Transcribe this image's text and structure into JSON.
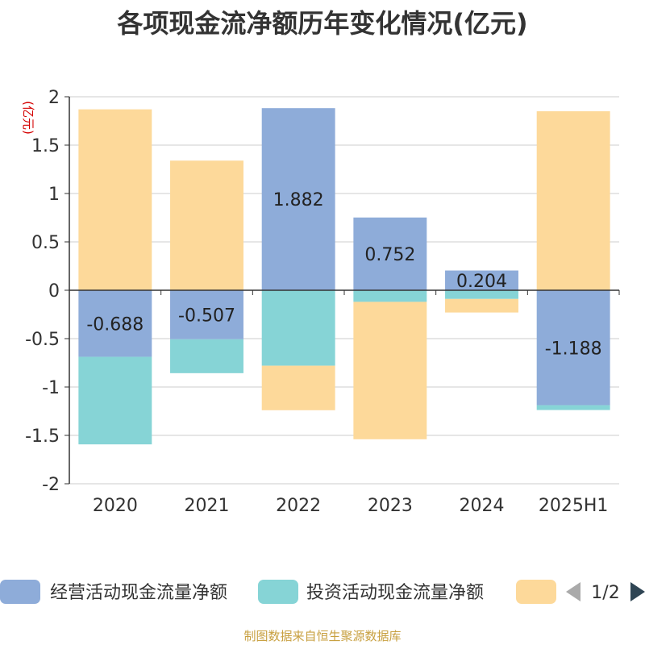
{
  "chart_data": {
    "type": "bar",
    "stacked": true,
    "title": "各项现金流净额历年变化情况(亿元)",
    "unit_label": "(亿元)",
    "categories": [
      "2020",
      "2021",
      "2022",
      "2023",
      "2024",
      "2025H1"
    ],
    "series": [
      {
        "name": "经营活动现金流量净额",
        "color": "#8eacd9",
        "values": [
          -0.688,
          -0.507,
          1.882,
          0.752,
          0.204,
          -1.188
        ],
        "labels": [
          "-0.688",
          "-0.507",
          "1.882",
          "0.752",
          "0.204",
          "-1.188"
        ]
      },
      {
        "name": "投资活动现金流量净额",
        "color": "#86d4d6",
        "values": [
          -0.905,
          -0.35,
          -0.78,
          -0.12,
          -0.09,
          -0.05
        ]
      },
      {
        "name": "",
        "color": "#fdd99a",
        "values": [
          1.87,
          1.34,
          -0.46,
          -1.42,
          -0.14,
          1.85
        ]
      }
    ],
    "ylim": [
      -2,
      2
    ],
    "yticks": [
      2,
      1.5,
      1,
      0.5,
      0,
      -0.5,
      -1,
      -1.5,
      -2
    ],
    "ytick_labels": [
      "2",
      "1.5",
      "1",
      "0.5",
      "0",
      "-0.5",
      "-1",
      "-1.5",
      "-2"
    ],
    "grid": true,
    "legend_position": "bottom"
  },
  "legend": {
    "page_indicator": "1/2"
  },
  "source_note": "制图数据来自恒生聚源数据库"
}
